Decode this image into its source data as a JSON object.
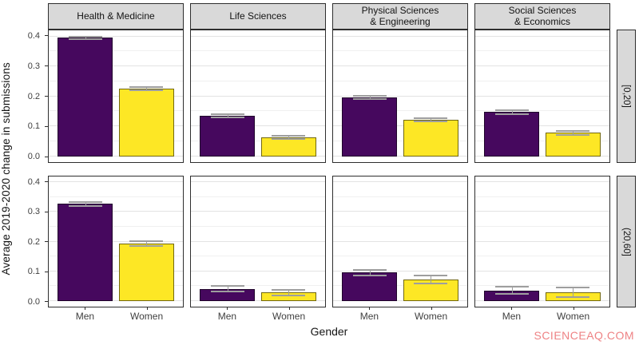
{
  "watermark": {
    "text": "SCIENCEAQ.COM",
    "color": "#ee8284"
  },
  "chart_data": {
    "type": "bar",
    "title": "",
    "xlabel": "Gender",
    "ylabel": "Average 2019-2020 change in submissions",
    "categories": [
      "Men",
      "Women"
    ],
    "col_facets": [
      "Health & Medicine",
      "Life Sciences",
      "Physical Sciences\n& Engineering",
      "Social Sciences\n& Economics"
    ],
    "row_facets": [
      "[0,20]",
      "(20,60]"
    ],
    "y_tick_labels": [
      "0.0",
      "0.1",
      "0.2",
      "0.3",
      "0.4"
    ],
    "y_tick_values": [
      0.0,
      0.1,
      0.2,
      0.3,
      0.4
    ],
    "y_minor_values": [
      0.05,
      0.15,
      0.25,
      0.35
    ],
    "ylim": [
      -0.02,
      0.42
    ],
    "grid": true,
    "legend": "none",
    "bar_colors": {
      "Men": "#46085e",
      "Women": "#fde725"
    },
    "error_color": "#9e9e9e",
    "strip_bg": "#d9d9d9",
    "panels": [
      {
        "row_facet": "[0,20]",
        "cols": [
          {
            "facet": "Health & Medicine",
            "bars": [
              {
                "gender": "Men",
                "value": 0.395,
                "err": [
                  0.39,
                  0.4
                ]
              },
              {
                "gender": "Women",
                "value": 0.225,
                "err": [
                  0.22,
                  0.23
                ]
              }
            ]
          },
          {
            "facet": "Life Sciences",
            "bars": [
              {
                "gender": "Men",
                "value": 0.135,
                "err": [
                  0.129,
                  0.141
                ]
              },
              {
                "gender": "Women",
                "value": 0.062,
                "err": [
                  0.057,
                  0.068
                ]
              }
            ]
          },
          {
            "facet": "Physical Sciences & Engineering",
            "bars": [
              {
                "gender": "Men",
                "value": 0.196,
                "err": [
                  0.19,
                  0.202
                ]
              },
              {
                "gender": "Women",
                "value": 0.121,
                "err": [
                  0.115,
                  0.127
                ]
              }
            ]
          },
          {
            "facet": "Social Sciences & Economics",
            "bars": [
              {
                "gender": "Men",
                "value": 0.147,
                "err": [
                  0.14,
                  0.154
                ]
              },
              {
                "gender": "Women",
                "value": 0.078,
                "err": [
                  0.071,
                  0.085
                ]
              }
            ]
          }
        ]
      },
      {
        "row_facet": "(20,60]",
        "cols": [
          {
            "facet": "Health & Medicine",
            "bars": [
              {
                "gender": "Men",
                "value": 0.327,
                "err": [
                  0.32,
                  0.334
                ]
              },
              {
                "gender": "Women",
                "value": 0.193,
                "err": [
                  0.185,
                  0.201
                ]
              }
            ]
          },
          {
            "facet": "Life Sciences",
            "bars": [
              {
                "gender": "Men",
                "value": 0.04,
                "err": [
                  0.031,
                  0.049
                ]
              },
              {
                "gender": "Women",
                "value": 0.028,
                "err": [
                  0.018,
                  0.038
                ]
              }
            ]
          },
          {
            "facet": "Physical Sciences & Engineering",
            "bars": [
              {
                "gender": "Men",
                "value": 0.095,
                "err": [
                  0.086,
                  0.104
                ]
              },
              {
                "gender": "Women",
                "value": 0.071,
                "err": [
                  0.057,
                  0.084
                ]
              }
            ]
          },
          {
            "facet": "Social Sciences & Economics",
            "bars": [
              {
                "gender": "Men",
                "value": 0.035,
                "err": [
                  0.022,
                  0.048
                ]
              },
              {
                "gender": "Women",
                "value": 0.028,
                "err": [
                  0.012,
                  0.045
                ]
              }
            ]
          }
        ]
      }
    ],
    "layout": {
      "bar_centers_pct": [
        27.3,
        72.7
      ],
      "bar_width_pct": 41,
      "cap_width_pct": 25
    }
  }
}
